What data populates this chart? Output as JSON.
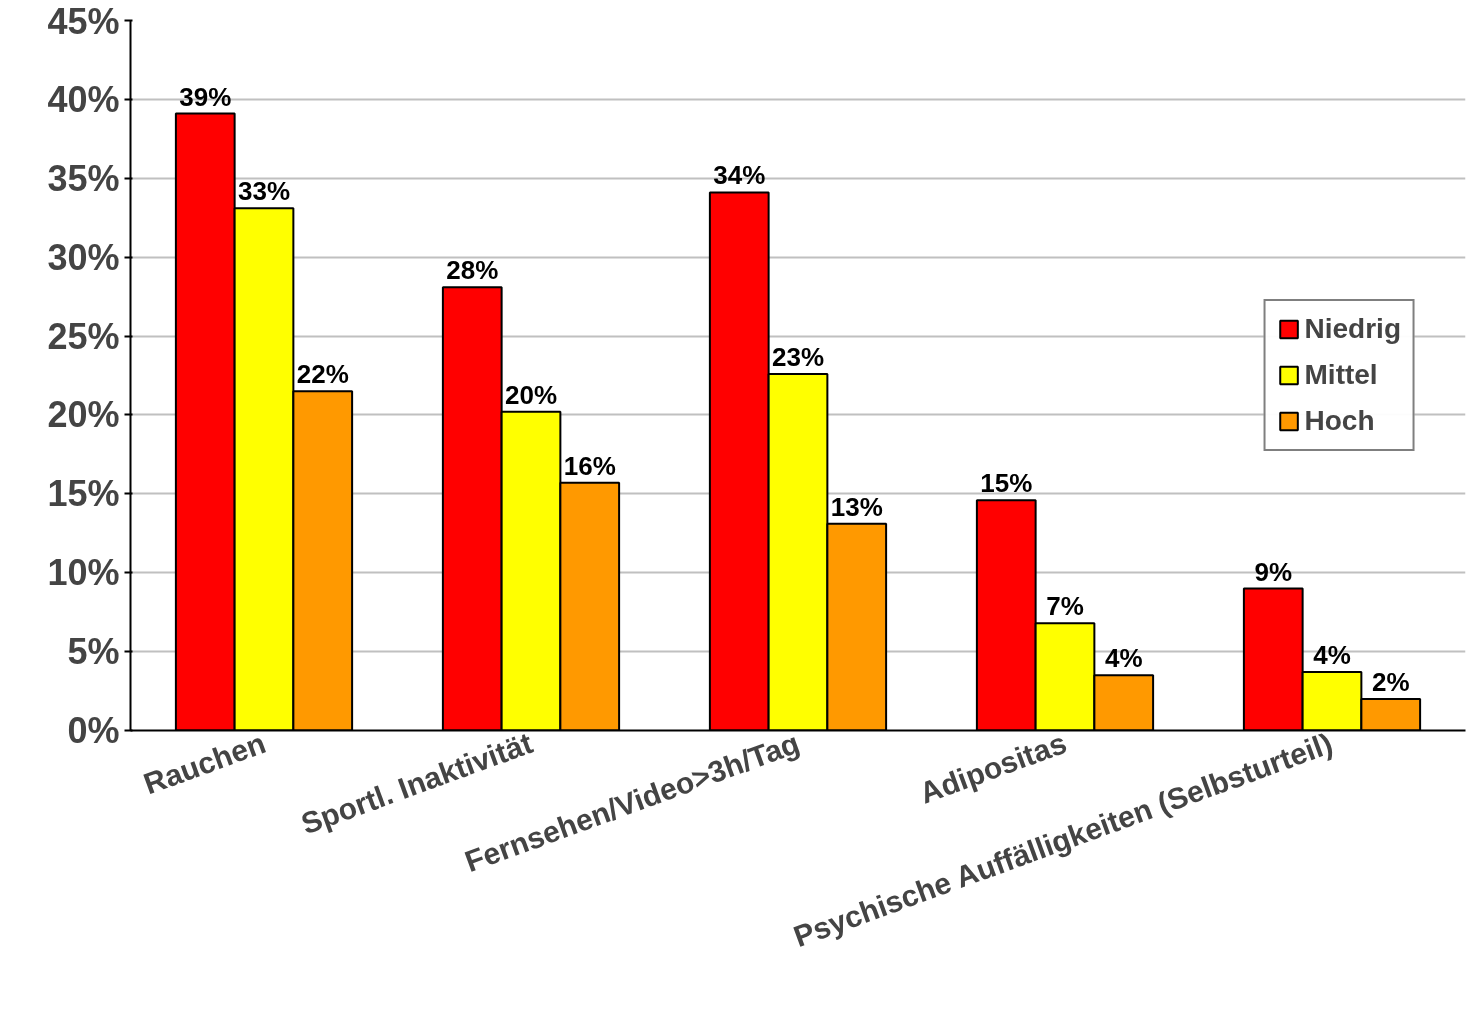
{
  "chart_data": {
    "type": "bar",
    "categories": [
      "Rauchen",
      "Sportl. Inaktivität",
      "Fernsehen/Video>3h/Tag",
      "Adipositas",
      "Psychische Auffälligkeiten (Selbsturteil)"
    ],
    "series": [
      {
        "name": "Niedrig",
        "color": "#ff0000",
        "values": [
          39.1,
          28.1,
          34.1,
          14.6,
          9.0
        ],
        "value_labels": [
          "39%",
          "28%",
          "34%",
          "15%",
          "9%"
        ]
      },
      {
        "name": "Mittel",
        "color": "#ffff00",
        "values": [
          33.1,
          20.2,
          22.6,
          6.8,
          3.7
        ],
        "value_labels": [
          "33%",
          "20%",
          "23%",
          "7%",
          "4%"
        ]
      },
      {
        "name": "Hoch",
        "color": "#ff9900",
        "values": [
          21.5,
          15.7,
          13.1,
          3.5,
          2.0
        ],
        "value_labels": [
          "22%",
          "16%",
          "13%",
          "4%",
          "2%"
        ]
      }
    ],
    "ylim": [
      0,
      45
    ],
    "yticks": [
      {
        "value": 0,
        "label": "0%"
      },
      {
        "value": 5,
        "label": "5%"
      },
      {
        "value": 10,
        "label": "10%"
      },
      {
        "value": 15,
        "label": "15%"
      },
      {
        "value": 20,
        "label": "20%"
      },
      {
        "value": 25,
        "label": "25%"
      },
      {
        "value": 30,
        "label": "30%"
      },
      {
        "value": 35,
        "label": "35%"
      },
      {
        "value": 40,
        "label": "40%"
      },
      {
        "value": 45,
        "label": "45%"
      }
    ],
    "grid": "y",
    "legend": "right"
  }
}
